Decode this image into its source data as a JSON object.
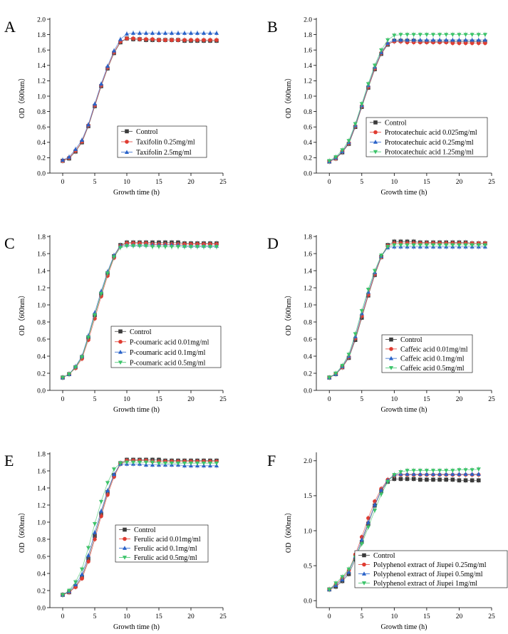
{
  "chart_data": [
    {
      "type": "line",
      "panel_label": "A",
      "xlabel": "Growth time (h)",
      "ylabel": "OD（600nm）",
      "xlim": [
        -2,
        25
      ],
      "ylim": [
        0,
        2.0
      ],
      "xticks": [
        0,
        5,
        10,
        15,
        20,
        25
      ],
      "yticks": [
        0.0,
        0.2,
        0.4,
        0.6,
        0.8,
        1.0,
        1.2,
        1.4,
        1.6,
        1.8,
        2.0
      ],
      "ytick_labels": [
        "0.0",
        "0.2",
        "0.4",
        "0.6",
        "0.8",
        "1.0",
        "1.2",
        "1.4",
        "1.6",
        "1.8",
        "2.0"
      ],
      "legend_position": "center-right",
      "x": [
        0,
        1,
        2,
        3,
        4,
        5,
        6,
        7,
        8,
        9,
        10,
        11,
        12,
        13,
        14,
        15,
        16,
        17,
        18,
        19,
        20,
        21,
        22,
        23,
        24
      ],
      "series": [
        {
          "name": "Control",
          "color": "#3c3c3c",
          "marker": "square",
          "values": [
            0.16,
            0.19,
            0.28,
            0.4,
            0.61,
            0.87,
            1.13,
            1.36,
            1.56,
            1.7,
            1.75,
            1.74,
            1.74,
            1.73,
            1.73,
            1.73,
            1.73,
            1.73,
            1.73,
            1.72,
            1.72,
            1.72,
            1.72,
            1.72,
            1.72
          ]
        },
        {
          "name": "Taxifolin 0.25mg/ml",
          "color": "#e03c31",
          "marker": "circle",
          "values": [
            0.16,
            0.2,
            0.29,
            0.41,
            0.62,
            0.88,
            1.14,
            1.37,
            1.57,
            1.71,
            1.75,
            1.75,
            1.74,
            1.74,
            1.74,
            1.73,
            1.73,
            1.73,
            1.73,
            1.73,
            1.73,
            1.73,
            1.73,
            1.73,
            1.73
          ]
        },
        {
          "name": "Taxifolin 2.5mg/ml",
          "color": "#2a63c9",
          "marker": "triangle-up",
          "values": [
            0.17,
            0.21,
            0.31,
            0.43,
            0.63,
            0.9,
            1.16,
            1.39,
            1.59,
            1.74,
            1.81,
            1.82,
            1.82,
            1.82,
            1.82,
            1.82,
            1.82,
            1.82,
            1.82,
            1.82,
            1.82,
            1.82,
            1.82,
            1.82,
            1.82
          ]
        }
      ]
    },
    {
      "type": "line",
      "panel_label": "B",
      "xlabel": "Growth time (h)",
      "ylabel": "OD（600nm）",
      "xlim": [
        -2,
        25
      ],
      "ylim": [
        0,
        2.0
      ],
      "xticks": [
        0,
        5,
        10,
        15,
        20,
        25
      ],
      "yticks": [
        0.0,
        0.2,
        0.4,
        0.6,
        0.8,
        1.0,
        1.2,
        1.4,
        1.6,
        1.8,
        2.0
      ],
      "ytick_labels": [
        "0.0",
        "0.2",
        "0.4",
        "0.6",
        "0.8",
        "1.0",
        "1.2",
        "1.4",
        "1.6",
        "1.8",
        "2.0"
      ],
      "legend_position": "center-right",
      "x": [
        0,
        1,
        2,
        3,
        4,
        5,
        6,
        7,
        8,
        9,
        10,
        11,
        12,
        13,
        14,
        15,
        16,
        17,
        18,
        19,
        20,
        21,
        22,
        23,
        24
      ],
      "series": [
        {
          "name": "Control",
          "color": "#3c3c3c",
          "marker": "square",
          "values": [
            0.15,
            0.19,
            0.27,
            0.38,
            0.6,
            0.86,
            1.11,
            1.35,
            1.55,
            1.67,
            1.72,
            1.72,
            1.72,
            1.72,
            1.71,
            1.71,
            1.71,
            1.71,
            1.71,
            1.71,
            1.71,
            1.71,
            1.71,
            1.71,
            1.71
          ]
        },
        {
          "name": "Protocatechuic acid 0.025mg/ml",
          "color": "#e03c31",
          "marker": "circle",
          "values": [
            0.15,
            0.19,
            0.28,
            0.39,
            0.61,
            0.87,
            1.12,
            1.36,
            1.56,
            1.68,
            1.71,
            1.71,
            1.7,
            1.7,
            1.7,
            1.7,
            1.7,
            1.7,
            1.7,
            1.69,
            1.69,
            1.69,
            1.69,
            1.69,
            1.69
          ]
        },
        {
          "name": "Protocatechuic acid 0.25mg/ml",
          "color": "#2a63c9",
          "marker": "triangle-up",
          "values": [
            0.15,
            0.2,
            0.28,
            0.4,
            0.62,
            0.88,
            1.14,
            1.38,
            1.57,
            1.69,
            1.73,
            1.73,
            1.73,
            1.73,
            1.73,
            1.73,
            1.73,
            1.73,
            1.73,
            1.73,
            1.73,
            1.73,
            1.73,
            1.73,
            1.73
          ]
        },
        {
          "name": "Protocatechuic acid 1.25mg/ml",
          "color": "#3cc46a",
          "marker": "triangle-down",
          "values": [
            0.16,
            0.21,
            0.3,
            0.42,
            0.64,
            0.9,
            1.16,
            1.4,
            1.6,
            1.73,
            1.79,
            1.8,
            1.8,
            1.8,
            1.8,
            1.8,
            1.8,
            1.8,
            1.8,
            1.8,
            1.8,
            1.8,
            1.8,
            1.8,
            1.8
          ]
        }
      ]
    },
    {
      "type": "line",
      "panel_label": "C",
      "xlabel": "Growth time (h)",
      "ylabel": "OD（600nm）",
      "xlim": [
        -2,
        25
      ],
      "ylim": [
        0,
        1.8
      ],
      "xticks": [
        0,
        5,
        10,
        15,
        20,
        25
      ],
      "yticks": [
        0.0,
        0.2,
        0.4,
        0.6,
        0.8,
        1.0,
        1.2,
        1.4,
        1.6,
        1.8
      ],
      "ytick_labels": [
        "0.0",
        "0.2",
        "0.4",
        "0.6",
        "0.8",
        "1.0",
        "1.2",
        "1.4",
        "1.6",
        "1.8"
      ],
      "legend_position": "center-right",
      "x": [
        0,
        1,
        2,
        3,
        4,
        5,
        6,
        7,
        8,
        9,
        10,
        11,
        12,
        13,
        14,
        15,
        16,
        17,
        18,
        19,
        20,
        21,
        22,
        23,
        24
      ],
      "series": [
        {
          "name": "Control",
          "color": "#3c3c3c",
          "marker": "square",
          "values": [
            0.15,
            0.19,
            0.27,
            0.39,
            0.62,
            0.88,
            1.13,
            1.37,
            1.57,
            1.7,
            1.73,
            1.73,
            1.73,
            1.73,
            1.73,
            1.73,
            1.73,
            1.73,
            1.73,
            1.72,
            1.72,
            1.72,
            1.72,
            1.72,
            1.72
          ]
        },
        {
          "name": "P-coumaric acid 0.01mg/ml",
          "color": "#e03c31",
          "marker": "circle",
          "values": [
            0.15,
            0.19,
            0.26,
            0.37,
            0.59,
            0.84,
            1.1,
            1.34,
            1.55,
            1.69,
            1.72,
            1.72,
            1.72,
            1.72,
            1.71,
            1.71,
            1.71,
            1.71,
            1.71,
            1.71,
            1.71,
            1.71,
            1.71,
            1.71,
            1.71
          ]
        },
        {
          "name": "P-coumaric acid 0.1mg/ml",
          "color": "#2a63c9",
          "marker": "triangle-up",
          "values": [
            0.15,
            0.19,
            0.28,
            0.4,
            0.64,
            0.91,
            1.16,
            1.39,
            1.58,
            1.69,
            1.7,
            1.7,
            1.7,
            1.7,
            1.7,
            1.7,
            1.7,
            1.7,
            1.7,
            1.69,
            1.69,
            1.69,
            1.69,
            1.69,
            1.69
          ]
        },
        {
          "name": "P-coumaric acid 0.5mg/ml",
          "color": "#3cc46a",
          "marker": "triangle-down",
          "values": [
            0.15,
            0.19,
            0.27,
            0.39,
            0.62,
            0.88,
            1.13,
            1.37,
            1.56,
            1.67,
            1.69,
            1.69,
            1.69,
            1.69,
            1.68,
            1.68,
            1.68,
            1.68,
            1.68,
            1.68,
            1.68,
            1.68,
            1.68,
            1.68,
            1.68
          ]
        }
      ]
    },
    {
      "type": "line",
      "panel_label": "D",
      "xlabel": "Growth time (h)",
      "ylabel": "OD（600nm）",
      "xlim": [
        -2,
        25
      ],
      "ylim": [
        0,
        1.8
      ],
      "xticks": [
        0,
        5,
        10,
        15,
        20,
        25
      ],
      "yticks": [
        0.0,
        0.2,
        0.4,
        0.6,
        0.8,
        1.0,
        1.2,
        1.4,
        1.6,
        1.8
      ],
      "ytick_labels": [
        "0.0",
        "0.2",
        "0.4",
        "0.6",
        "0.8",
        "1.0",
        "1.2",
        "1.4",
        "1.6",
        "1.8"
      ],
      "legend_position": "center-right",
      "x": [
        0,
        1,
        2,
        3,
        4,
        5,
        6,
        7,
        8,
        9,
        10,
        11,
        12,
        13,
        14,
        15,
        16,
        17,
        18,
        19,
        20,
        21,
        22,
        23,
        24
      ],
      "series": [
        {
          "name": "Control",
          "color": "#3c3c3c",
          "marker": "square",
          "values": [
            0.15,
            0.19,
            0.27,
            0.38,
            0.59,
            0.85,
            1.11,
            1.35,
            1.56,
            1.7,
            1.74,
            1.74,
            1.74,
            1.74,
            1.73,
            1.73,
            1.73,
            1.73,
            1.73,
            1.73,
            1.73,
            1.73,
            1.72,
            1.72,
            1.72
          ]
        },
        {
          "name": "Caffeic acid 0.01mg/ml",
          "color": "#e03c31",
          "marker": "circle",
          "values": [
            0.15,
            0.19,
            0.27,
            0.39,
            0.61,
            0.87,
            1.12,
            1.36,
            1.56,
            1.69,
            1.72,
            1.72,
            1.72,
            1.72,
            1.72,
            1.72,
            1.72,
            1.72,
            1.72,
            1.72,
            1.72,
            1.72,
            1.72,
            1.72,
            1.72
          ]
        },
        {
          "name": "Caffeic acid 0.1mg/ml",
          "color": "#2a63c9",
          "marker": "triangle-up",
          "values": [
            0.15,
            0.19,
            0.28,
            0.4,
            0.63,
            0.9,
            1.15,
            1.38,
            1.57,
            1.67,
            1.68,
            1.68,
            1.68,
            1.68,
            1.68,
            1.68,
            1.68,
            1.68,
            1.68,
            1.68,
            1.68,
            1.68,
            1.68,
            1.68,
            1.68
          ]
        },
        {
          "name": "Caffeic acid 0.5mg/ml",
          "color": "#3cc46a",
          "marker": "triangle-down",
          "values": [
            0.15,
            0.2,
            0.29,
            0.42,
            0.66,
            0.93,
            1.18,
            1.4,
            1.58,
            1.68,
            1.7,
            1.7,
            1.7,
            1.7,
            1.7,
            1.7,
            1.7,
            1.7,
            1.7,
            1.7,
            1.7,
            1.7,
            1.7,
            1.7,
            1.7
          ]
        }
      ]
    },
    {
      "type": "line",
      "panel_label": "E",
      "xlabel": "Growth time (h)",
      "ylabel": "OD（600nm）",
      "xlim": [
        -2,
        25
      ],
      "ylim": [
        0,
        1.8
      ],
      "xticks": [
        0,
        5,
        10,
        15,
        20,
        25
      ],
      "yticks": [
        0.0,
        0.2,
        0.4,
        0.6,
        0.8,
        1.0,
        1.2,
        1.4,
        1.6,
        1.8
      ],
      "ytick_labels": [
        "0.0",
        "0.2",
        "0.4",
        "0.6",
        "0.8",
        "1.0",
        "1.2",
        "1.4",
        "1.6",
        "1.8"
      ],
      "legend_position": "center-right",
      "x": [
        0,
        1,
        2,
        3,
        4,
        5,
        6,
        7,
        8,
        9,
        10,
        11,
        12,
        13,
        14,
        15,
        16,
        17,
        18,
        19,
        20,
        21,
        22,
        23,
        24
      ],
      "series": [
        {
          "name": "Control",
          "color": "#3c3c3c",
          "marker": "square",
          "values": [
            0.15,
            0.18,
            0.25,
            0.36,
            0.57,
            0.84,
            1.1,
            1.35,
            1.55,
            1.69,
            1.73,
            1.73,
            1.73,
            1.73,
            1.73,
            1.73,
            1.72,
            1.72,
            1.72,
            1.72,
            1.72,
            1.72,
            1.72,
            1.72,
            1.72
          ]
        },
        {
          "name": "Ferulic acid 0.01mg/ml",
          "color": "#e03c31",
          "marker": "circle",
          "values": [
            0.15,
            0.18,
            0.24,
            0.34,
            0.54,
            0.8,
            1.07,
            1.32,
            1.53,
            1.68,
            1.72,
            1.72,
            1.72,
            1.72,
            1.71,
            1.71,
            1.71,
            1.71,
            1.71,
            1.71,
            1.71,
            1.71,
            1.71,
            1.71,
            1.71
          ]
        },
        {
          "name": "Ferulic acid 0.1mg/ml",
          "color": "#2a63c9",
          "marker": "triangle-up",
          "values": [
            0.15,
            0.19,
            0.27,
            0.39,
            0.61,
            0.88,
            1.13,
            1.37,
            1.56,
            1.68,
            1.68,
            1.68,
            1.68,
            1.67,
            1.67,
            1.67,
            1.67,
            1.67,
            1.67,
            1.66,
            1.66,
            1.66,
            1.66,
            1.66,
            1.66
          ]
        },
        {
          "name": "Ferulic acid 0.5mg/ml",
          "color": "#3cc46a",
          "marker": "triangle-down",
          "values": [
            0.15,
            0.2,
            0.3,
            0.45,
            0.7,
            0.98,
            1.24,
            1.46,
            1.62,
            1.69,
            1.7,
            1.7,
            1.7,
            1.7,
            1.7,
            1.69,
            1.69,
            1.69,
            1.69,
            1.69,
            1.69,
            1.69,
            1.69,
            1.69,
            1.69
          ]
        }
      ]
    },
    {
      "type": "line",
      "panel_label": "F",
      "xlabel": "Growth time (h)",
      "ylabel": "OD（600nm）",
      "xlim": [
        -2,
        25
      ],
      "ylim": [
        -0.1,
        2.1
      ],
      "xticks": [
        0,
        5,
        10,
        15,
        20,
        25
      ],
      "yticks": [
        0.0,
        0.5,
        1.0,
        1.5,
        2.0
      ],
      "ytick_labels": [
        "0.0",
        "0.5",
        "1.0",
        "1.5",
        "2.0"
      ],
      "legend_position": "bottom-right",
      "x": [
        0,
        1,
        2,
        3,
        4,
        5,
        6,
        7,
        8,
        9,
        10,
        11,
        12,
        13,
        14,
        15,
        16,
        17,
        18,
        19,
        20,
        21,
        22,
        23
      ],
      "series": [
        {
          "name": "Control",
          "color": "#3c3c3c",
          "marker": "square",
          "values": [
            0.16,
            0.2,
            0.28,
            0.38,
            0.59,
            0.84,
            1.1,
            1.36,
            1.57,
            1.7,
            1.74,
            1.74,
            1.74,
            1.74,
            1.73,
            1.73,
            1.73,
            1.73,
            1.73,
            1.73,
            1.72,
            1.72,
            1.72,
            1.72
          ]
        },
        {
          "name": "Polyphenol extract of Jiupei 0.25mg/ml",
          "color": "#e03c31",
          "marker": "circle",
          "values": [
            0.16,
            0.23,
            0.32,
            0.43,
            0.66,
            0.91,
            1.18,
            1.42,
            1.6,
            1.73,
            1.79,
            1.8,
            1.8,
            1.8,
            1.8,
            1.8,
            1.8,
            1.8,
            1.8,
            1.8,
            1.8,
            1.8,
            1.8,
            1.8
          ]
        },
        {
          "name": "Polyphenol extract of Jiupei 0.5mg/ml",
          "color": "#2a63c9",
          "marker": "triangle-up",
          "values": [
            0.16,
            0.22,
            0.3,
            0.41,
            0.63,
            0.87,
            1.12,
            1.37,
            1.58,
            1.72,
            1.8,
            1.81,
            1.81,
            1.81,
            1.81,
            1.81,
            1.81,
            1.81,
            1.81,
            1.81,
            1.81,
            1.81,
            1.81,
            1.81
          ]
        },
        {
          "name": "Polyphenol extract of Jiupei 1mg/ml",
          "color": "#3cc46a",
          "marker": "triangle-down",
          "values": [
            0.16,
            0.25,
            0.34,
            0.45,
            0.62,
            0.81,
            1.05,
            1.29,
            1.52,
            1.7,
            1.8,
            1.84,
            1.86,
            1.86,
            1.86,
            1.86,
            1.86,
            1.86,
            1.86,
            1.86,
            1.87,
            1.87,
            1.87,
            1.88
          ]
        }
      ]
    }
  ]
}
